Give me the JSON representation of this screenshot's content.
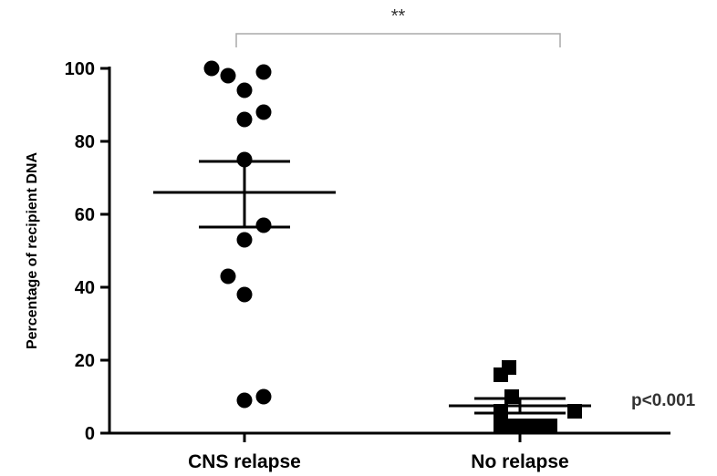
{
  "chart_data": {
    "type": "scatter",
    "title": "",
    "xlabel": "",
    "ylabel": "Percentage of recipient DNA",
    "ylim": [
      0,
      100
    ],
    "yticks": [
      "0",
      "20",
      "40",
      "60",
      "80",
      "100"
    ],
    "categories": [
      "CNS relapse",
      "No relapse"
    ],
    "series": [
      {
        "category": "CNS relapse",
        "marker": "circle",
        "points": [
          {
            "x": -0.12,
            "y": 100
          },
          {
            "x": -0.06,
            "y": 98
          },
          {
            "x": 0.07,
            "y": 99
          },
          {
            "x": 0.0,
            "y": 94
          },
          {
            "x": 0.0,
            "y": 86
          },
          {
            "x": 0.07,
            "y": 88
          },
          {
            "x": 0.0,
            "y": 75
          },
          {
            "x": 0.07,
            "y": 57
          },
          {
            "x": 0.0,
            "y": 53
          },
          {
            "x": -0.06,
            "y": 43
          },
          {
            "x": 0.0,
            "y": 38
          },
          {
            "x": 0.0,
            "y": 9
          },
          {
            "x": 0.07,
            "y": 10
          }
        ],
        "mean": 66,
        "sem_upper": 74.5,
        "sem_lower": 56.5
      },
      {
        "category": "No relapse",
        "marker": "square",
        "points": [
          {
            "x": -0.07,
            "y": 16
          },
          {
            "x": -0.04,
            "y": 18
          },
          {
            "x": -0.07,
            "y": 6
          },
          {
            "x": -0.03,
            "y": 10
          },
          {
            "x": 0.2,
            "y": 6
          },
          {
            "x": -0.07,
            "y": 2
          },
          {
            "x": -0.02,
            "y": 2
          },
          {
            "x": 0.03,
            "y": 2
          },
          {
            "x": 0.07,
            "y": 2
          },
          {
            "x": 0.11,
            "y": 2
          }
        ],
        "mean": 7.5,
        "sem_upper": 9.5,
        "sem_lower": 5.5
      }
    ],
    "annotations": {
      "significance": "**",
      "pvalue": "p<0.001"
    },
    "grid": false,
    "legend": "none"
  },
  "colors": {
    "points": "#000000",
    "bracket": "#aaaaaa",
    "annotation": "#333333"
  }
}
